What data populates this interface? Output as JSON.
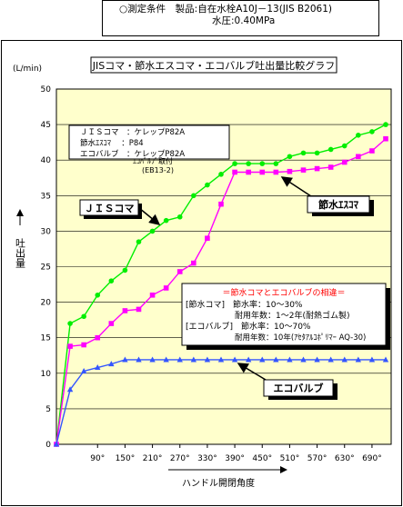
{
  "header": {
    "line1": "○測定条件　製品:自在水栓A10J－13(JIS B2061)",
    "line2": "水圧:0.40MPa"
  },
  "chart_data": {
    "type": "line",
    "title": "JISコマ・節水エスコマ・エコバルブ吐出量比較グラフ",
    "ylabel": "吐出量",
    "yunit": "(L/min)",
    "xlabel": "ハンドル開閉角度",
    "ylim": [
      0,
      50
    ],
    "yticks": [
      0,
      5,
      10,
      15,
      20,
      25,
      30,
      35,
      40,
      45,
      50
    ],
    "xtick_labels": [
      "90°",
      "150°",
      "210°",
      "270°",
      "330°",
      "390°",
      "450°",
      "510°",
      "570°",
      "630°",
      "690°"
    ],
    "x": [
      0,
      30,
      60,
      90,
      120,
      150,
      180,
      210,
      240,
      270,
      300,
      330,
      360,
      390,
      420,
      450,
      480,
      510,
      540,
      570,
      600,
      630,
      660,
      690,
      720
    ],
    "series": [
      {
        "name": "JISコマ",
        "color": "#00ee00",
        "values": [
          0,
          17,
          18,
          21,
          23,
          24.5,
          28.5,
          30,
          31.5,
          32,
          35,
          36.5,
          38,
          39.5,
          39.5,
          39.5,
          39.5,
          40.5,
          41,
          41,
          41.5,
          42,
          43.5,
          44,
          45
        ]
      },
      {
        "name": "節水エスコマ",
        "color": "#ff00ff",
        "values": [
          0,
          13.8,
          14,
          15,
          17,
          18.8,
          19,
          21,
          22,
          24.3,
          25.5,
          29,
          33.8,
          38.3,
          38.3,
          38.3,
          38.3,
          38.4,
          38.6,
          38.8,
          39,
          39.7,
          40.5,
          41.3,
          43
        ]
      },
      {
        "name": "エコバルブ",
        "color": "#3355ff",
        "values": [
          0,
          7.7,
          10.3,
          10.8,
          11.3,
          11.9,
          11.9,
          11.9,
          11.9,
          11.9,
          11.9,
          11.9,
          11.9,
          11.9,
          11.9,
          11.9,
          11.9,
          11.9,
          11.9,
          11.9,
          11.9,
          11.9,
          11.9,
          11.9,
          11.9
        ]
      }
    ],
    "spec_box": {
      "lines": [
        "ＪＩＳコマ　：ケレップP82A",
        "節水ｴｽｺﾏ　 ：P84",
        "エコバルブ　：ケレップP82A",
        "ｴｺﾊﾞﾙﾌﾞ取付",
        "(EB13-2)"
      ]
    },
    "rate_box": {
      "heading": "＝節水コマとエコバルブの相違＝",
      "lines": [
        "[節水コマ]　節水率：10～30%",
        "耐用年数：1～2年(耐熱ゴム製)",
        "[エコバルブ]　節水率：10～70%",
        "耐用年数：10年(ｱｾﾀｱﾙｺﾎﾟﾘﾏｰ AQ-30)"
      ]
    },
    "callouts": [
      "ＪＩＳコマ",
      "節水ｴｽｺﾏ",
      "エコバルブ"
    ]
  }
}
